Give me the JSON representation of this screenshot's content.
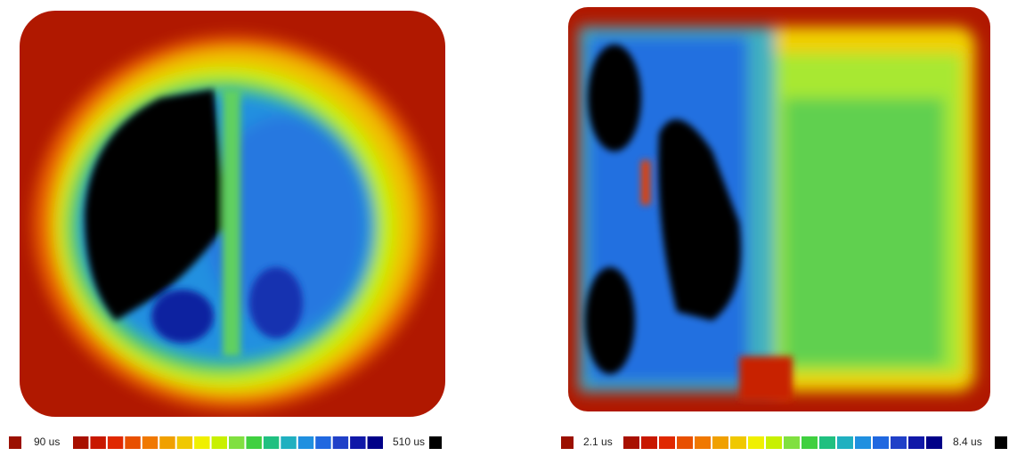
{
  "panels": [
    {
      "min_label": "90 us",
      "max_label": "510 us"
    },
    {
      "min_label": "2.1 us",
      "max_label": "8.4 us"
    }
  ],
  "min_color": "#9b1000",
  "max_color": "#000000",
  "scale_colors": [
    "#a81000",
    "#c81800",
    "#e02800",
    "#e85000",
    "#f07800",
    "#f0a000",
    "#f0c800",
    "#f0f000",
    "#c8f000",
    "#80e040",
    "#40d040",
    "#20c080",
    "#20b0c0",
    "#2090e0",
    "#2068e0",
    "#2040c8",
    "#1018a8",
    "#000088"
  ]
}
